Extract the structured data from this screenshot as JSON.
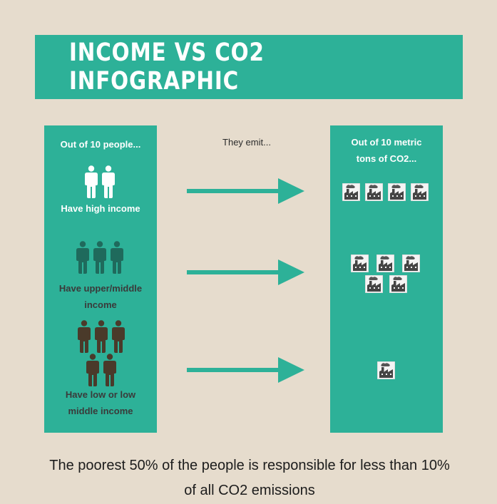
{
  "title": "INCOME VS CO2 INFOGRAPHIC",
  "left_panel": {
    "heading": "Out of 10 people...",
    "groups": [
      {
        "label": "Have high income",
        "count": 2,
        "color": "#ffffff"
      },
      {
        "label": "Have upper/middle income",
        "count": 3,
        "color": "#1f6a5c"
      },
      {
        "label": "Have low or low middle income",
        "count": 5,
        "color": "#4a3a2a"
      }
    ]
  },
  "middle_label": "They emit...",
  "right_panel": {
    "heading": "Out of 10 metric tons of CO2...",
    "emissions": [
      4,
      5,
      1
    ]
  },
  "footer": "The poorest 50% of the people is responsible for less than 10% of all CO2 emissions",
  "colors": {
    "background": "#e6dccd",
    "teal": "#2db198",
    "arrow": "#2db198"
  },
  "icons": {
    "person": "person-icon",
    "factory": "factory-icon",
    "arrow": "arrow-right-icon"
  }
}
